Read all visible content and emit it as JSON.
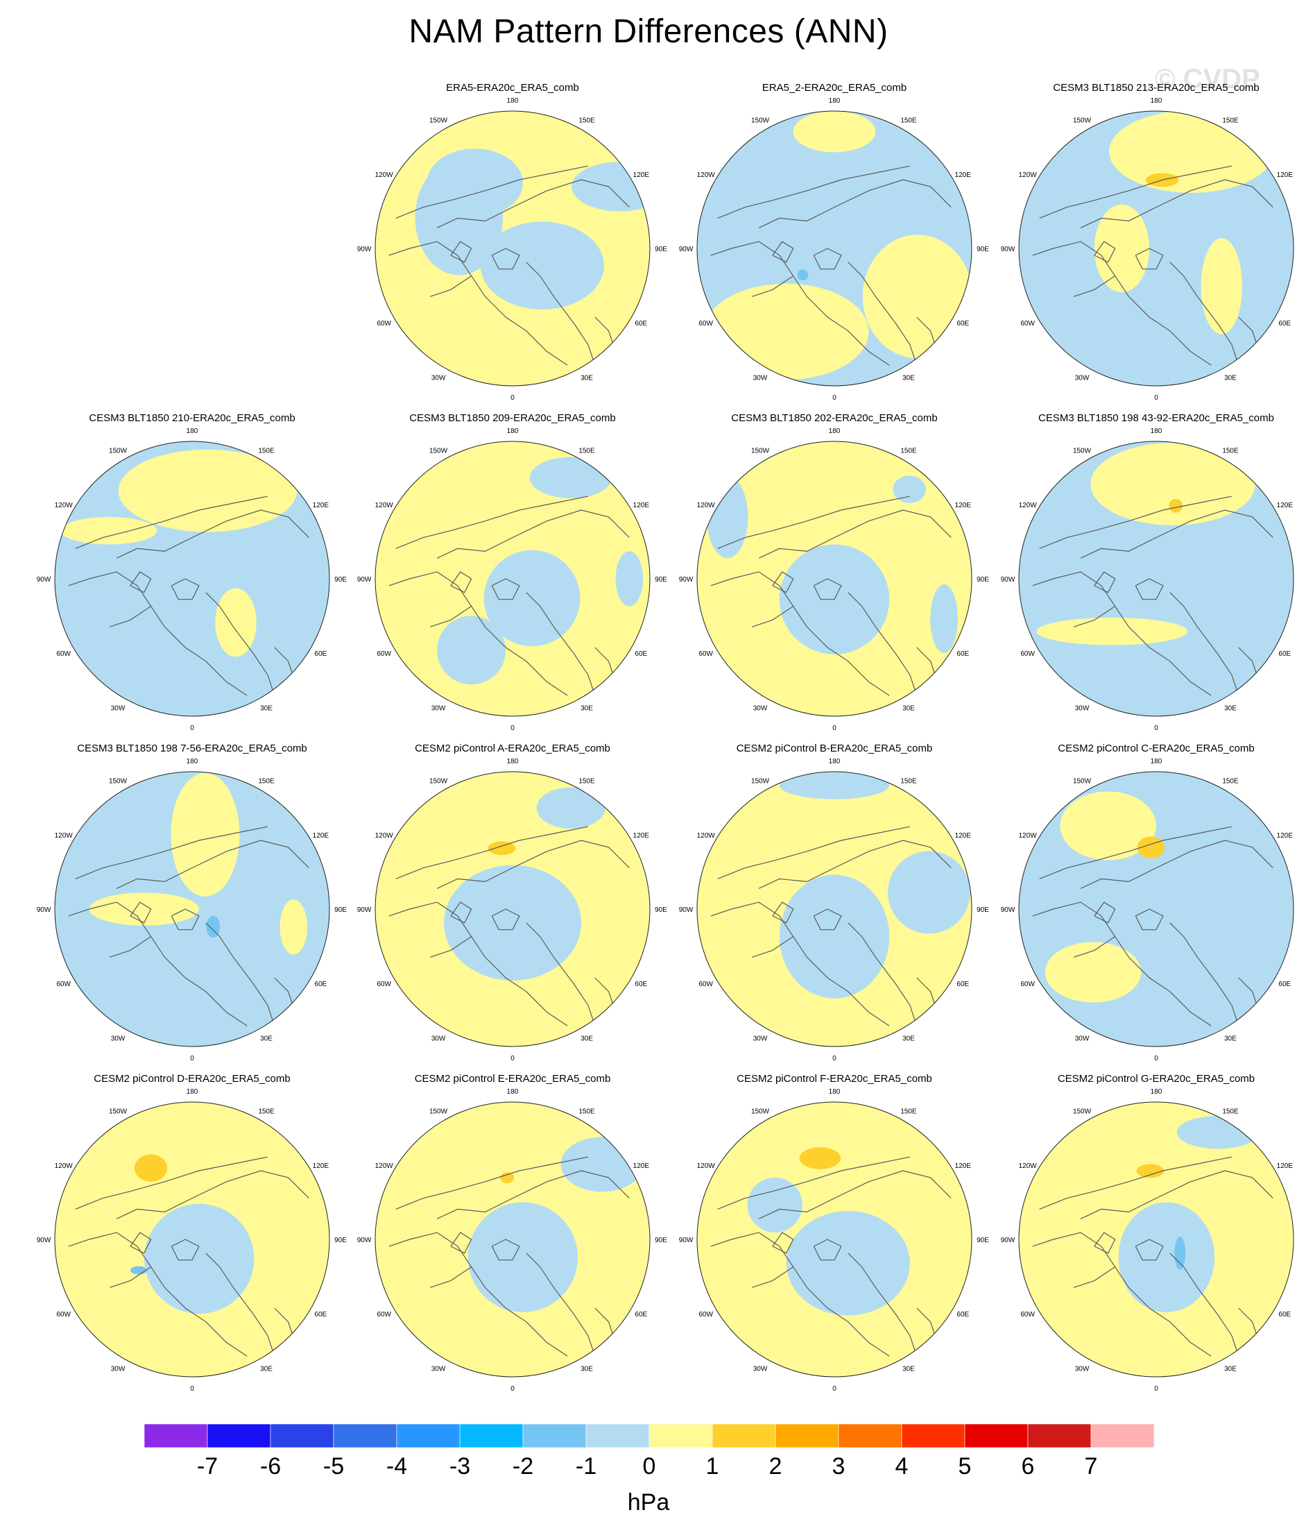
{
  "title": "NAM Pattern Differences (ANN)",
  "watermark": "© CVDP",
  "units": "hPa",
  "colors": {
    "neg1_0": "#b3dcf2",
    "zero_1": "#fffa96",
    "one_2": "#fdd02b",
    "neg2_neg1": "#75c5f2",
    "coast": "#5a5a5a"
  },
  "colorbar": {
    "colors": [
      "#8b2ae8",
      "#1a10f5",
      "#2a43e8",
      "#3271e8",
      "#2796ff",
      "#06b9ff",
      "#75c5f2",
      "#b3dcf2",
      "#fffa96",
      "#fdd02b",
      "#ffaa00",
      "#ff7300",
      "#ff3000",
      "#e60000",
      "#d01a1a",
      "#ffb0b0"
    ],
    "labels": [
      "-7",
      "-6",
      "-5",
      "-4",
      "-3",
      "-2",
      "-1",
      "0",
      "1",
      "2",
      "3",
      "4",
      "5",
      "6",
      "7"
    ]
  },
  "longitude_labels": [
    "180",
    "150E",
    "120E",
    "90E",
    "60E",
    "30E",
    "0",
    "30W",
    "60W",
    "90W",
    "120W",
    "150W"
  ],
  "panels": [
    {
      "title": "ERA5-ERA20c_ERA5_comb",
      "background": "zero_1",
      "blobs": [
        {
          "lon": -120,
          "r": 0.45,
          "rx": 0.32,
          "ry": 0.42,
          "level": "neg1_0"
        },
        {
          "lon": 60,
          "r": 0.25,
          "rx": 0.45,
          "ry": 0.32,
          "level": "neg1_0"
        },
        {
          "lon": -150,
          "r": 0.55,
          "rx": 0.35,
          "ry": 0.25,
          "level": "neg1_0"
        },
        {
          "lon": 120,
          "r": 0.9,
          "rx": 0.35,
          "ry": 0.18,
          "level": "neg1_0"
        }
      ]
    },
    {
      "title": "ERA5_2-ERA20c_ERA5_comb",
      "background": "neg1_0",
      "blobs": [
        {
          "lon": -30,
          "r": 0.7,
          "rx": 0.6,
          "ry": 0.35,
          "level": "zero_1"
        },
        {
          "lon": 60,
          "r": 0.7,
          "rx": 0.4,
          "ry": 0.45,
          "level": "zero_1"
        },
        {
          "lon": 180,
          "r": 0.85,
          "rx": 0.3,
          "ry": 0.15,
          "level": "zero_1"
        },
        {
          "lon": -50,
          "r": 0.3,
          "rx": 0.04,
          "ry": 0.04,
          "level": "neg2_neg1"
        }
      ]
    },
    {
      "title": "CESM3 BLT1850 213-ERA20c_ERA5_comb",
      "background": "neg1_0",
      "blobs": [
        {
          "lon": 160,
          "r": 0.75,
          "rx": 0.6,
          "ry": 0.3,
          "level": "zero_1"
        },
        {
          "lon": -90,
          "r": 0.25,
          "rx": 0.2,
          "ry": 0.32,
          "level": "zero_1"
        },
        {
          "lon": 60,
          "r": 0.55,
          "rx": 0.15,
          "ry": 0.35,
          "level": "zero_1"
        },
        {
          "lon": 175,
          "r": 0.5,
          "rx": 0.12,
          "ry": 0.05,
          "level": "one_2"
        }
      ]
    },
    {
      "title": "CESM3 BLT1850 210-ERA20c_ERA5_comb",
      "background": "neg1_0",
      "blobs": [
        {
          "lon": 170,
          "r": 0.65,
          "rx": 0.65,
          "ry": 0.3,
          "level": "zero_1"
        },
        {
          "lon": 45,
          "r": 0.45,
          "rx": 0.15,
          "ry": 0.25,
          "level": "zero_1"
        },
        {
          "lon": -120,
          "r": 0.7,
          "rx": 0.35,
          "ry": 0.1,
          "level": "zero_1"
        }
      ]
    },
    {
      "title": "CESM3 BLT1850 209-ERA20c_ERA5_comb",
      "background": "zero_1",
      "blobs": [
        {
          "lon": 45,
          "r": 0.2,
          "rx": 0.35,
          "ry": 0.35,
          "level": "neg1_0"
        },
        {
          "lon": -30,
          "r": 0.6,
          "rx": 0.25,
          "ry": 0.25,
          "level": "neg1_0"
        },
        {
          "lon": 150,
          "r": 0.85,
          "rx": 0.3,
          "ry": 0.15,
          "level": "neg1_0"
        },
        {
          "lon": 90,
          "r": 0.85,
          "rx": 0.1,
          "ry": 0.2,
          "level": "neg1_0"
        }
      ]
    },
    {
      "title": "CESM3 BLT1850 202-ERA20c_ERA5_comb",
      "background": "zero_1",
      "blobs": [
        {
          "lon": 0,
          "r": 0.15,
          "rx": 0.4,
          "ry": 0.4,
          "level": "neg1_0"
        },
        {
          "lon": 140,
          "r": 0.85,
          "rx": 0.12,
          "ry": 0.1,
          "level": "neg1_0"
        },
        {
          "lon": 70,
          "r": 0.85,
          "rx": 0.1,
          "ry": 0.25,
          "level": "neg1_0"
        },
        {
          "lon": -120,
          "r": 0.9,
          "rx": 0.15,
          "ry": 0.3,
          "level": "neg1_0"
        }
      ]
    },
    {
      "title": "CESM3 BLT1850 198 43-92-ERA20c_ERA5_comb",
      "background": "neg1_0",
      "blobs": [
        {
          "lon": 170,
          "r": 0.7,
          "rx": 0.6,
          "ry": 0.3,
          "level": "zero_1"
        },
        {
          "lon": -40,
          "r": 0.5,
          "rx": 0.55,
          "ry": 0.1,
          "level": "zero_1"
        },
        {
          "lon": 165,
          "r": 0.55,
          "rx": 0.05,
          "ry": 0.05,
          "level": "one_2"
        }
      ]
    },
    {
      "title": "CESM3 BLT1850 198 7-56-ERA20c_ERA5_comb",
      "background": "neg1_0",
      "blobs": [
        {
          "lon": 170,
          "r": 0.55,
          "rx": 0.25,
          "ry": 0.45,
          "level": "zero_1"
        },
        {
          "lon": -90,
          "r": 0.35,
          "rx": 0.4,
          "ry": 0.12,
          "level": "zero_1"
        },
        {
          "lon": 80,
          "r": 0.75,
          "rx": 0.1,
          "ry": 0.2,
          "level": "zero_1"
        },
        {
          "lon": 50,
          "r": 0.2,
          "rx": 0.05,
          "ry": 0.08,
          "level": "neg2_neg1"
        }
      ]
    },
    {
      "title": "CESM2 piControl A-ERA20c_ERA5_comb",
      "background": "zero_1",
      "blobs": [
        {
          "lon": 0,
          "r": 0.1,
          "rx": 0.5,
          "ry": 0.42,
          "level": "neg1_0"
        },
        {
          "lon": 150,
          "r": 0.85,
          "rx": 0.25,
          "ry": 0.15,
          "level": "neg1_0"
        },
        {
          "lon": -170,
          "r": 0.45,
          "rx": 0.1,
          "ry": 0.05,
          "level": "one_2"
        }
      ]
    },
    {
      "title": "CESM2 piControl B-ERA20c_ERA5_comb",
      "background": "zero_1",
      "blobs": [
        {
          "lon": 0,
          "r": 0.2,
          "rx": 0.4,
          "ry": 0.45,
          "level": "neg1_0"
        },
        {
          "lon": 100,
          "r": 0.7,
          "rx": 0.3,
          "ry": 0.3,
          "level": "neg1_0"
        },
        {
          "lon": 180,
          "r": 0.9,
          "rx": 0.4,
          "ry": 0.1,
          "level": "neg1_0"
        }
      ]
    },
    {
      "title": "CESM2 piControl C-ERA20c_ERA5_comb",
      "background": "neg1_0",
      "blobs": [
        {
          "lon": -150,
          "r": 0.7,
          "rx": 0.35,
          "ry": 0.25,
          "level": "zero_1"
        },
        {
          "lon": -45,
          "r": 0.65,
          "rx": 0.35,
          "ry": 0.22,
          "level": "zero_1"
        },
        {
          "lon": -175,
          "r": 0.45,
          "rx": 0.1,
          "ry": 0.08,
          "level": "one_2"
        }
      ]
    },
    {
      "title": "CESM2 piControl D-ERA20c_ERA5_comb",
      "background": "zero_1",
      "blobs": [
        {
          "lon": 20,
          "r": 0.15,
          "rx": 0.4,
          "ry": 0.4,
          "level": "neg1_0"
        },
        {
          "lon": -150,
          "r": 0.6,
          "rx": 0.12,
          "ry": 0.1,
          "level": "one_2"
        },
        {
          "lon": -60,
          "r": 0.45,
          "rx": 0.06,
          "ry": 0.03,
          "level": "neg2_neg1"
        }
      ]
    },
    {
      "title": "CESM2 piControl E-ERA20c_ERA5_comb",
      "background": "zero_1",
      "blobs": [
        {
          "lon": 30,
          "r": 0.15,
          "rx": 0.4,
          "ry": 0.4,
          "level": "neg1_0"
        },
        {
          "lon": 130,
          "r": 0.85,
          "rx": 0.3,
          "ry": 0.2,
          "level": "neg1_0"
        },
        {
          "lon": -175,
          "r": 0.45,
          "rx": 0.05,
          "ry": 0.04,
          "level": "one_2"
        }
      ]
    },
    {
      "title": "CESM2 piControl F-ERA20c_ERA5_comb",
      "background": "zero_1",
      "blobs": [
        {
          "lon": 30,
          "r": 0.2,
          "rx": 0.45,
          "ry": 0.38,
          "level": "neg1_0"
        },
        {
          "lon": -120,
          "r": 0.5,
          "rx": 0.2,
          "ry": 0.2,
          "level": "neg1_0"
        },
        {
          "lon": -170,
          "r": 0.6,
          "rx": 0.15,
          "ry": 0.08,
          "level": "one_2"
        }
      ]
    },
    {
      "title": "CESM2 piControl G-ERA20c_ERA5_comb",
      "background": "zero_1",
      "blobs": [
        {
          "lon": 30,
          "r": 0.15,
          "rx": 0.35,
          "ry": 0.4,
          "level": "neg1_0"
        },
        {
          "lon": 150,
          "r": 0.9,
          "rx": 0.3,
          "ry": 0.12,
          "level": "neg1_0"
        },
        {
          "lon": -175,
          "r": 0.5,
          "rx": 0.1,
          "ry": 0.05,
          "level": "one_2"
        },
        {
          "lon": 60,
          "r": 0.2,
          "rx": 0.04,
          "ry": 0.12,
          "level": "neg2_neg1"
        }
      ]
    }
  ]
}
